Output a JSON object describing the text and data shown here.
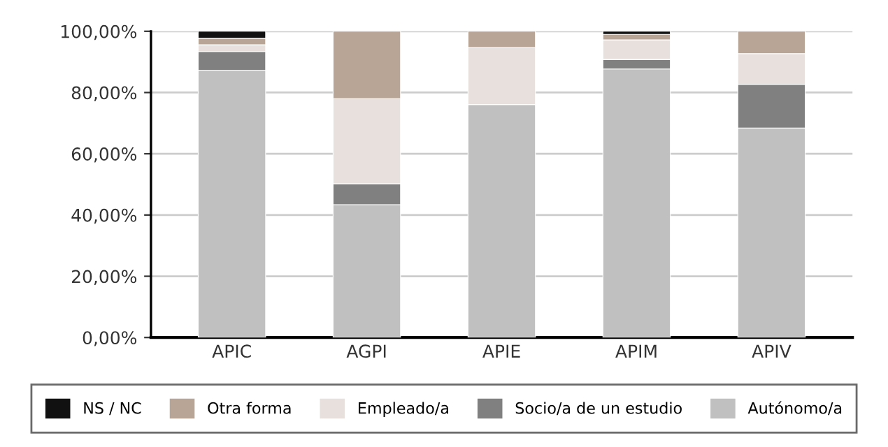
{
  "chart_data": {
    "type": "bar",
    "stacked": true,
    "categories": [
      "APIC",
      "AGPI",
      "APIE",
      "APIM",
      "APIV"
    ],
    "series": [
      {
        "name": "Autónomo/a",
        "color": "#c0c0c0",
        "values": [
          87.3,
          43.4,
          76.1,
          87.7,
          68.4
        ]
      },
      {
        "name": "Socio/a de un estudio",
        "color": "#808080",
        "values": [
          6.1,
          6.8,
          0,
          3.1,
          14.3
        ]
      },
      {
        "name": "Empleado/a",
        "color": "#e8e0dd",
        "values": [
          2.2,
          27.8,
          18.6,
          6.4,
          10.0
        ]
      },
      {
        "name": "Otra forma",
        "color": "#b8a596",
        "values": [
          2.1,
          22.0,
          5.3,
          1.8,
          7.3
        ]
      },
      {
        "name": "NS / NC",
        "color": "#111111",
        "values": [
          2.3,
          0,
          0,
          1.0,
          0
        ]
      }
    ],
    "ylim": [
      0,
      100
    ],
    "yticks": [
      {
        "value": 0,
        "label": "0,00%"
      },
      {
        "value": 20,
        "label": "20,00%"
      },
      {
        "value": 40,
        "label": "40,00%"
      },
      {
        "value": 60,
        "label": "60,00%"
      },
      {
        "value": 80,
        "label": "80,00%"
      },
      {
        "value": 100,
        "label": "100,00%"
      }
    ],
    "grid": "y",
    "legend": "bottom"
  }
}
